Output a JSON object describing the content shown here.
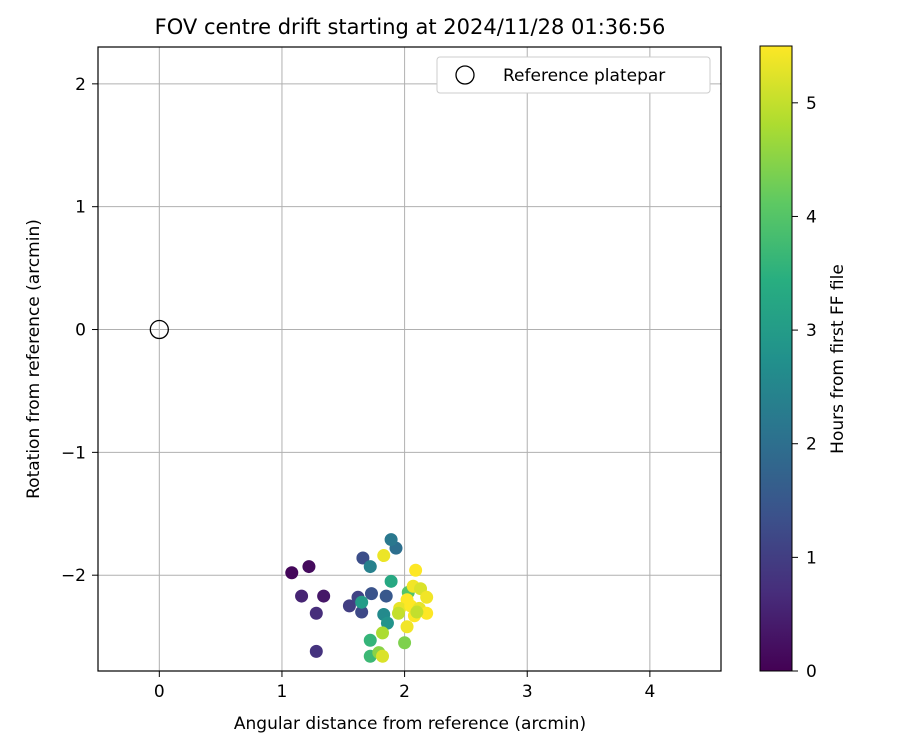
{
  "chart_data": {
    "type": "scatter",
    "title": "FOV centre drift starting at 2024/11/28 01:36:56",
    "xlabel": "Angular distance from reference (arcmin)",
    "ylabel": "Rotation from reference (arcmin)",
    "xlim": [
      -0.5,
      4.58
    ],
    "ylim": [
      -2.78,
      2.3
    ],
    "xticks": [
      0,
      1,
      2,
      3,
      4
    ],
    "yticks": [
      -2,
      -1,
      0,
      1,
      2
    ],
    "grid": true,
    "legend": {
      "placement": "top-right",
      "entries": [
        "Reference platepar"
      ]
    },
    "reference_point": {
      "name": "Reference platepar",
      "x": 0,
      "y": 0
    },
    "colorbar": {
      "label": "Hours from first FF file",
      "range": [
        0,
        5.5
      ],
      "ticks": [
        0,
        1,
        2,
        3,
        4,
        5
      ],
      "colormap": "viridis"
    },
    "points": [
      {
        "x": 1.08,
        "y": -1.98,
        "c": 0.1
      },
      {
        "x": 1.22,
        "y": -1.93,
        "c": 0.15
      },
      {
        "x": 1.34,
        "y": -2.17,
        "c": 0.35
      },
      {
        "x": 1.16,
        "y": -2.17,
        "c": 0.55
      },
      {
        "x": 1.28,
        "y": -2.31,
        "c": 0.7
      },
      {
        "x": 1.28,
        "y": -2.62,
        "c": 0.8
      },
      {
        "x": 1.55,
        "y": -2.25,
        "c": 1.0
      },
      {
        "x": 1.62,
        "y": -2.18,
        "c": 1.1
      },
      {
        "x": 1.65,
        "y": -2.3,
        "c": 1.2
      },
      {
        "x": 1.66,
        "y": -1.86,
        "c": 1.3
      },
      {
        "x": 1.73,
        "y": -2.15,
        "c": 1.4
      },
      {
        "x": 1.85,
        "y": -2.17,
        "c": 1.5
      },
      {
        "x": 1.93,
        "y": -1.78,
        "c": 2.0
      },
      {
        "x": 1.89,
        "y": -1.71,
        "c": 2.2
      },
      {
        "x": 1.72,
        "y": -1.93,
        "c": 2.4
      },
      {
        "x": 1.83,
        "y": -2.32,
        "c": 2.6
      },
      {
        "x": 1.86,
        "y": -2.39,
        "c": 2.8
      },
      {
        "x": 1.65,
        "y": -2.22,
        "c": 3.0
      },
      {
        "x": 1.89,
        "y": -2.05,
        "c": 3.3
      },
      {
        "x": 1.72,
        "y": -2.53,
        "c": 3.6
      },
      {
        "x": 1.72,
        "y": -2.66,
        "c": 3.7
      },
      {
        "x": 1.79,
        "y": -2.63,
        "c": 4.5
      },
      {
        "x": 2.03,
        "y": -2.14,
        "c": 4.0
      },
      {
        "x": 2.0,
        "y": -2.55,
        "c": 4.4
      },
      {
        "x": 1.82,
        "y": -2.47,
        "c": 4.8
      },
      {
        "x": 1.82,
        "y": -2.66,
        "c": 5.2
      },
      {
        "x": 1.83,
        "y": -1.84,
        "c": 5.35
      },
      {
        "x": 2.09,
        "y": -1.96,
        "c": 5.5
      },
      {
        "x": 2.07,
        "y": -2.09,
        "c": 5.4
      },
      {
        "x": 2.13,
        "y": -2.11,
        "c": 5.2
      },
      {
        "x": 2.18,
        "y": -2.18,
        "c": 5.4
      },
      {
        "x": 2.02,
        "y": -2.2,
        "c": 5.5
      },
      {
        "x": 1.96,
        "y": -2.27,
        "c": 5.3
      },
      {
        "x": 2.05,
        "y": -2.25,
        "c": 5.5
      },
      {
        "x": 2.12,
        "y": -2.27,
        "c": 5.3
      },
      {
        "x": 2.18,
        "y": -2.31,
        "c": 5.5
      },
      {
        "x": 1.95,
        "y": -2.31,
        "c": 5.0
      },
      {
        "x": 2.08,
        "y": -2.33,
        "c": 5.5
      },
      {
        "x": 2.02,
        "y": -2.42,
        "c": 5.4
      },
      {
        "x": 2.1,
        "y": -2.3,
        "c": 5.0
      }
    ]
  }
}
